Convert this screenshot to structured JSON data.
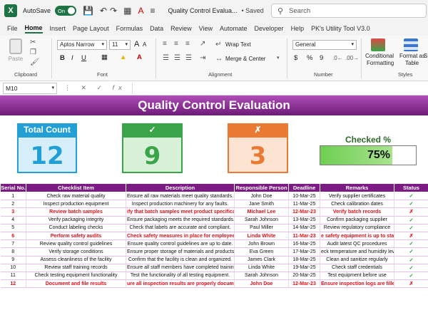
{
  "titlebar": {
    "logo": "X",
    "autosave_label": "AutoSave",
    "autosave_state": "On",
    "doc_title": "Quality Control Evalua...",
    "save_status": "• Saved",
    "search_placeholder": "Search"
  },
  "menu": [
    "File",
    "Home",
    "Insert",
    "Page Layout",
    "Formulas",
    "Data",
    "Review",
    "View",
    "Automate",
    "Developer",
    "Help",
    "PK's Utility Tool V3.0"
  ],
  "ribbon": {
    "paste_label": "Paste",
    "clipboard_label": "Clipboard",
    "font_name": "Aptos Narrow",
    "font_size": "11",
    "font_label": "Font",
    "bold": "B",
    "italic": "I",
    "underline": "U",
    "increase_font": "A",
    "decrease_font": "A",
    "font_color_glyph": "A",
    "wrap_text": "Wrap Text",
    "merge_center": "Merge & Center",
    "alignment_label": "Alignment",
    "number_format": "General",
    "currency": "$",
    "percent": "%",
    "comma": "9",
    "number_label": "Number",
    "conditional_formatting_1": "Conditional",
    "conditional_formatting_2": "Formatting",
    "format_as_table_1": "Format as",
    "format_as_table_2": "Table",
    "styles_label": "Styles",
    "cell_styles_cut": "S"
  },
  "formula_bar": {
    "name_box": "M10",
    "value": ""
  },
  "sheet": {
    "title": "Quality Control Evaluation",
    "kpis": [
      {
        "title": "Total Count",
        "value": "12",
        "color": "#22a0d6",
        "tint": "#d6eefa"
      },
      {
        "title": "✓",
        "value": "9",
        "color": "#3aa548",
        "tint": "#d8f0d8"
      },
      {
        "title": "✗",
        "value": "3",
        "color": "#ea7a33",
        "tint": "#fde3d2"
      }
    ],
    "checked_pct_title": "Checked %",
    "checked_pct_label": "75%",
    "checked_pct_value": 0.75,
    "columns": [
      "Serial No.",
      "Checklist Item",
      "Description",
      "Responsible Person",
      "Deadline",
      "Remarks",
      "Status"
    ],
    "rows": [
      {
        "no": "1",
        "item": "Check raw material quality",
        "desc": "Ensure all raw materials meet quality standards.",
        "person": "John Doe",
        "deadline": "10-Mar-25",
        "remarks": "Verify supplier certificates",
        "status": "✓",
        "ok": true
      },
      {
        "no": "2",
        "item": "Inspect production equipment",
        "desc": "Inspect production machinery for any faults.",
        "person": "Jane Smith",
        "deadline": "11-Mar-25",
        "remarks": "Check calibration dates",
        "status": "✓",
        "ok": true
      },
      {
        "no": "3",
        "item": "Review batch samples",
        "desc": "ify that batch samples meet product specificatio",
        "person": "Michael Lee",
        "deadline": "12-Mar-23",
        "remarks": "Verify batch records",
        "status": "✗",
        "ok": false
      },
      {
        "no": "4",
        "item": "Verify packaging integrity",
        "desc": "Ensure packaging meets the required standards.",
        "person": "Sarah Johnson",
        "deadline": "13-Mar-25",
        "remarks": "Confirm packaging supplier",
        "status": "✓",
        "ok": true
      },
      {
        "no": "5",
        "item": "Conduct labeling checks",
        "desc": "Check that labels are accurate and compliant.",
        "person": "Paul Miller",
        "deadline": "14-Mar-25",
        "remarks": "Review regulatory compliance",
        "status": "✓",
        "ok": true
      },
      {
        "no": "6",
        "item": "Perform safety audits",
        "desc": "Check safety measures in place for employees.",
        "person": "Linda White",
        "deadline": "11-Mar-23",
        "remarks": "e safety equipment is up to sta",
        "status": "✗",
        "ok": false
      },
      {
        "no": "7",
        "item": "Review quality control guidelines",
        "desc": "Ensure quality control guidelines are up to date.",
        "person": "John Brown",
        "deadline": "16-Mar-25",
        "remarks": "Audit latest QC procedures",
        "status": "✓",
        "ok": true
      },
      {
        "no": "8",
        "item": "Verify storage conditions",
        "desc": "Ensure proper storage of materials and products.",
        "person": "Eva Green",
        "deadline": "17-Mar-25",
        "remarks": "eck temperature and humidity lev",
        "status": "✓",
        "ok": true
      },
      {
        "no": "9",
        "item": "Assess cleanliness of the facility",
        "desc": "Confirm that the facility is clean and organized.",
        "person": "James Clark",
        "deadline": "18-Mar-25",
        "remarks": "Clean and sanitize regularly",
        "status": "✓",
        "ok": true
      },
      {
        "no": "10",
        "item": "Review staff training records",
        "desc": "Ensure all staff members have completed training.",
        "person": "Linda White",
        "deadline": "19-Mar-25",
        "remarks": "Check staff credentials",
        "status": "✓",
        "ok": true
      },
      {
        "no": "11",
        "item": "Check testing equipment functionality",
        "desc": "Test the functionality of all testing equipment.",
        "person": "Sarah Johnson",
        "deadline": "20-Mar-25",
        "remarks": "Test equipment before use",
        "status": "✓",
        "ok": true
      },
      {
        "no": "12",
        "item": "Document and file results",
        "desc": "ure all inspection results are properly document",
        "person": "John Doe",
        "deadline": "12-Mar-23",
        "remarks": "Ensure inspection logs are filled",
        "status": "✗",
        "ok": false
      }
    ]
  }
}
